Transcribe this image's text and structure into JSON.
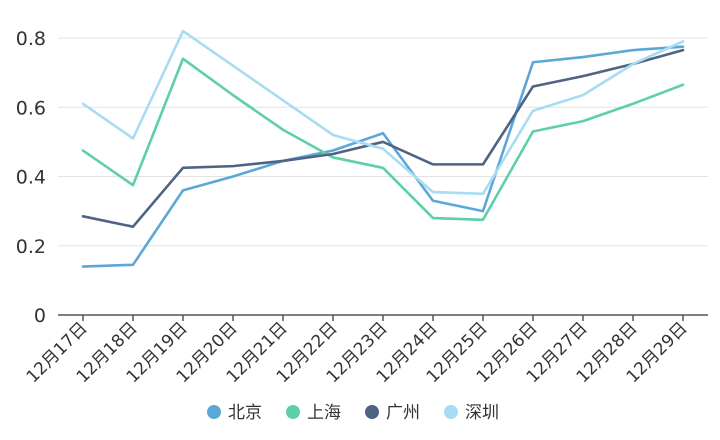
{
  "chart_data": {
    "type": "line",
    "categories": [
      "12月17日",
      "12月18日",
      "12月19日",
      "12月20日",
      "12月21日",
      "12月22日",
      "12月23日",
      "12月24日",
      "12月25日",
      "12月26日",
      "12月27日",
      "12月28日",
      "12月29日"
    ],
    "ylim": [
      0,
      0.8
    ],
    "yticks": [
      0,
      0.2,
      0.4,
      0.6,
      0.8
    ],
    "ytick_labels": [
      "0",
      "0.2",
      "0.4",
      "0.6",
      "0.8"
    ],
    "grid": true,
    "legend_position": "bottom",
    "series": [
      {
        "name": "北京",
        "color": "#5ca7d8",
        "values": [
          0.14,
          0.145,
          0.36,
          0.4,
          0.445,
          0.475,
          0.525,
          0.33,
          0.3,
          0.73,
          0.745,
          0.765,
          0.775
        ]
      },
      {
        "name": "上海",
        "color": "#5ecfa8",
        "values": [
          0.475,
          0.375,
          0.74,
          0.635,
          0.535,
          0.455,
          0.425,
          0.28,
          0.275,
          0.53,
          0.56,
          0.61,
          0.665
        ]
      },
      {
        "name": "广州",
        "color": "#4f6382",
        "values": [
          0.285,
          0.255,
          0.425,
          0.43,
          0.445,
          0.465,
          0.5,
          0.435,
          0.435,
          0.66,
          0.69,
          0.725,
          0.765
        ]
      },
      {
        "name": "深圳",
        "color": "#a8dcf2",
        "values": [
          0.61,
          0.51,
          0.82,
          0.72,
          0.62,
          0.52,
          0.48,
          0.355,
          0.35,
          0.59,
          0.635,
          0.725,
          0.79
        ]
      }
    ]
  }
}
